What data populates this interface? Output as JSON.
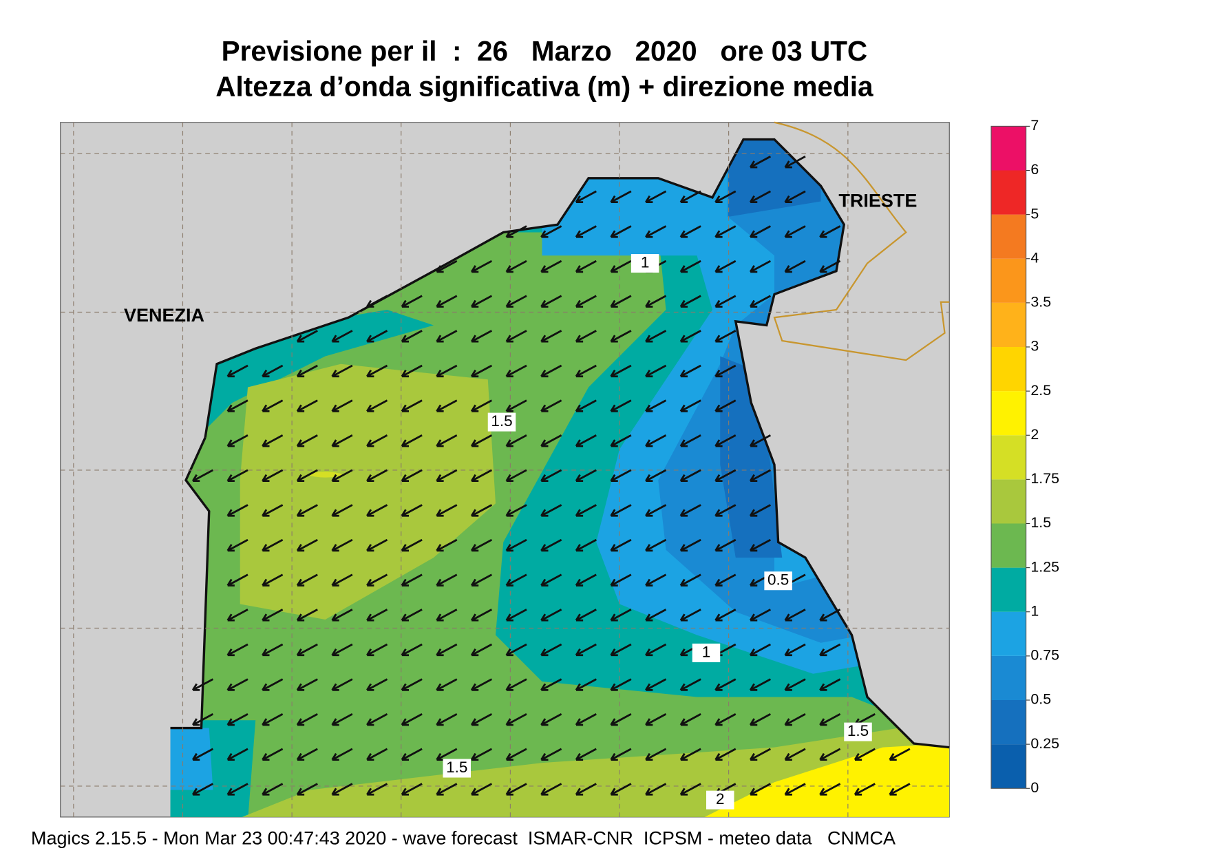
{
  "title": "Previsione per il  :  26   Marzo   2020   ore 03 UTC",
  "subtitle": "Altezza d’onda significativa (m) + direzione media",
  "chart_data": {
    "type": "contour-map",
    "colorbar": {
      "levels": [
        0,
        0.25,
        0.5,
        0.75,
        1,
        1.25,
        1.5,
        1.75,
        2,
        2.5,
        3,
        3.5,
        4,
        5,
        6,
        7
      ],
      "colors": [
        "#0a5fad",
        "#1570be",
        "#1a8ad3",
        "#1ca3e3",
        "#00aba2",
        "#6cb850",
        "#a9c83d",
        "#d5df25",
        "#fff200",
        "#ffd500",
        "#ffb21a",
        "#fb961b",
        "#f47a20",
        "#ee2726",
        "#ec1066"
      ]
    },
    "contour_labels": [
      1,
      1.5,
      0.5,
      1,
      1.5,
      1.5,
      2
    ],
    "place_labels": [
      "VENEZIA",
      "TRIESTE"
    ]
  },
  "footer": "Magics 2.15.5 - Mon Mar 23 00:47:43 2020 - wave forecast  ISMAR-CNR  ICPSM - meteo data   CNMCA"
}
